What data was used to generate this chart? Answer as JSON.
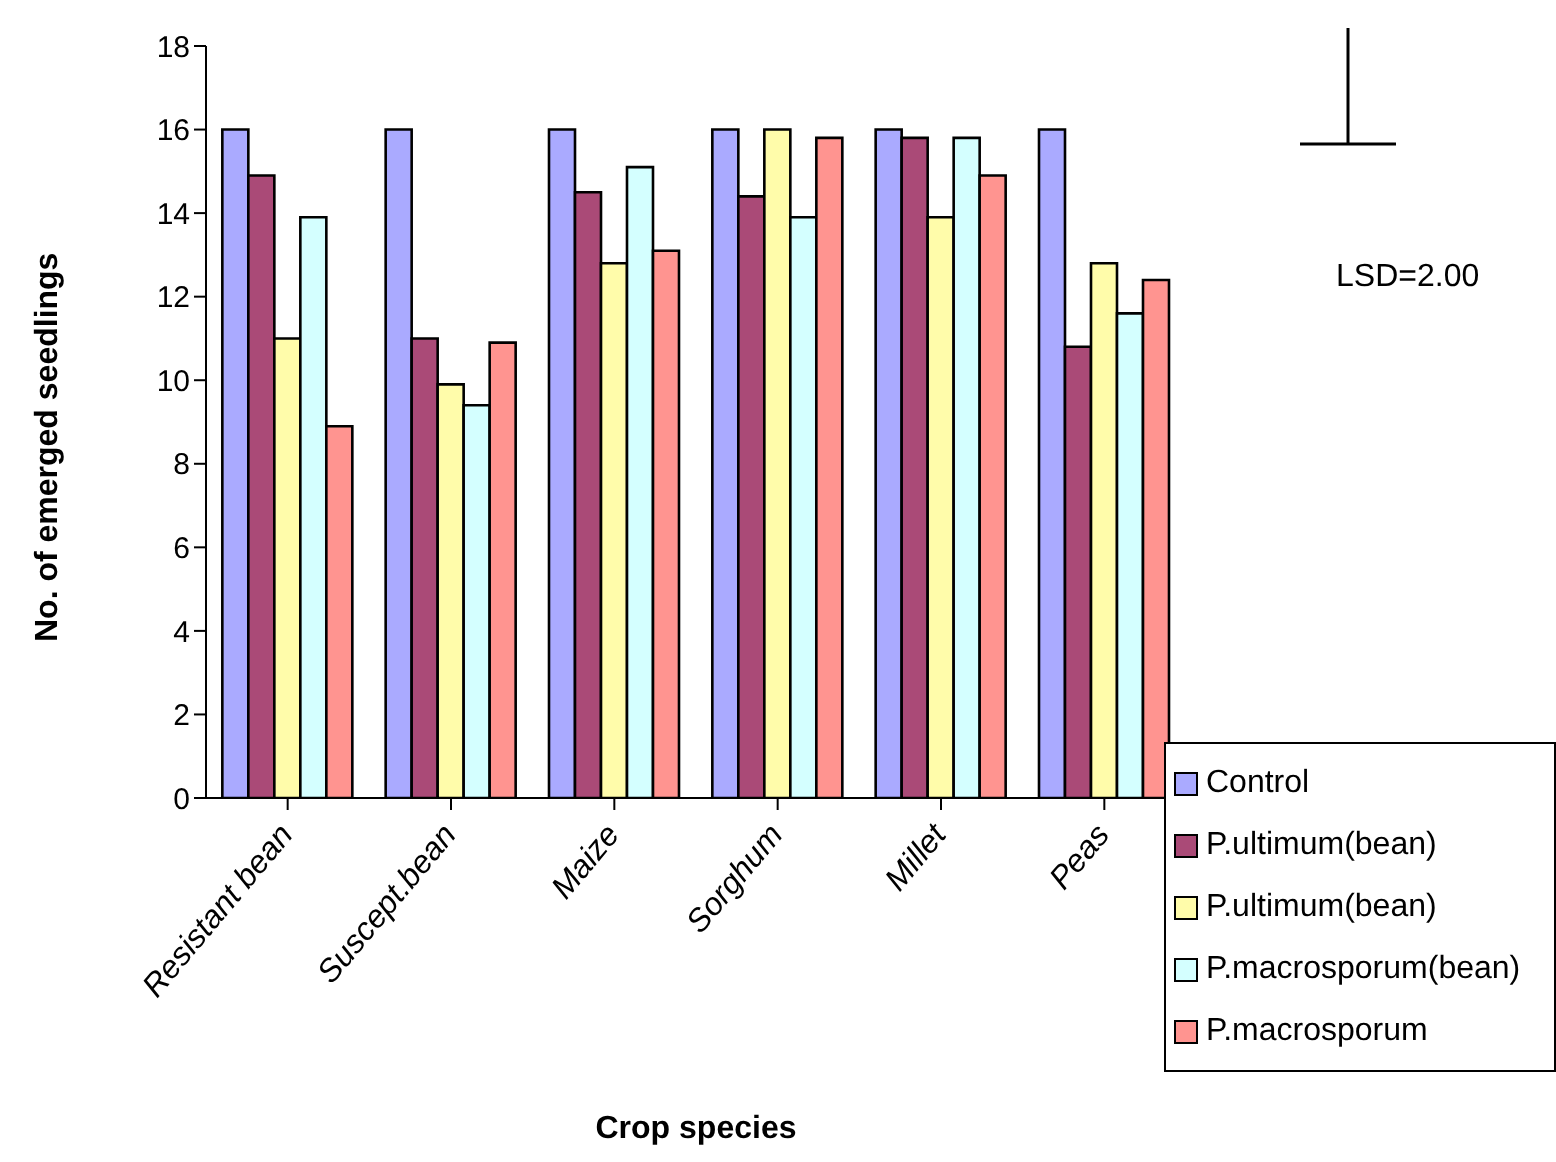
{
  "chart_data": {
    "type": "bar",
    "xlabel": "Crop species",
    "ylabel": "No. of emerged seedlings",
    "categories": [
      "Resistant bean",
      "Suscept.bean",
      "Maize",
      "Sorghum",
      "Millet",
      "Peas"
    ],
    "series": [
      {
        "name": "Control",
        "color": "#aaaaff",
        "values": [
          16,
          16,
          16,
          16,
          16,
          16
        ]
      },
      {
        "name": "P.ultimum(bean)",
        "color": "#aa4a77",
        "values": [
          14.9,
          11,
          14.5,
          14.4,
          15.8,
          10.8
        ]
      },
      {
        "name": "P.ultimum(bean)",
        "color": "#fffcaa",
        "values": [
          11,
          9.9,
          12.8,
          16,
          13.9,
          12.8
        ]
      },
      {
        "name": "P.macrosporum(bean)",
        "color": "#d4ffff",
        "values": [
          13.9,
          9.4,
          15.1,
          13.9,
          15.8,
          11.6
        ]
      },
      {
        "name": "P.macrosporum",
        "color": "#ff9490",
        "values": [
          8.9,
          10.9,
          13.1,
          15.8,
          14.9,
          12.4
        ]
      }
    ],
    "ylim": [
      0,
      18
    ],
    "yticks": [
      0,
      2,
      4,
      6,
      8,
      10,
      12,
      14,
      16,
      18
    ],
    "legend": "bottom right",
    "annotations": [
      "LSD=2.00"
    ]
  }
}
